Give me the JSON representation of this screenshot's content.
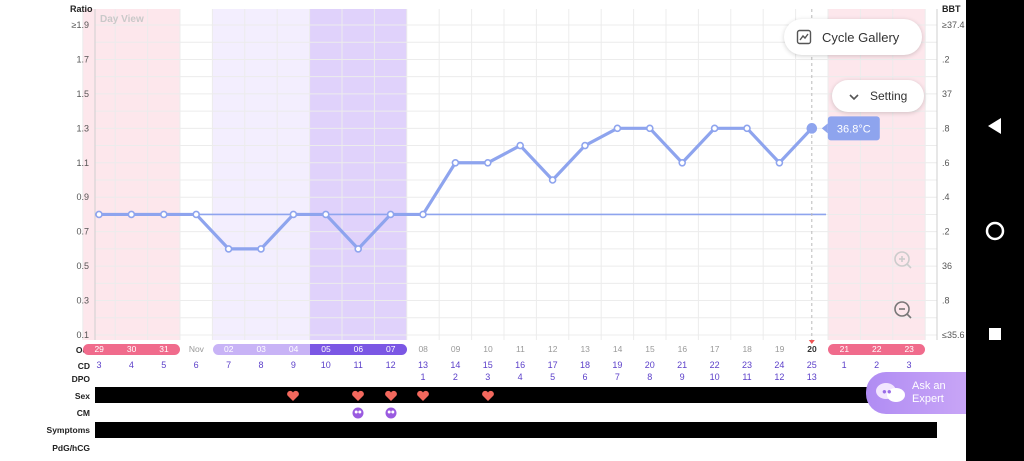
{
  "colors": {
    "line": "#8ea4ee",
    "coverline": "#8ea4ee",
    "period": "#f06b8c",
    "fertile": "#c8b3f6",
    "ovulation": "#7b57e4",
    "text_purple": "#5b3fc9"
  },
  "chart": {
    "view_label": "Day View",
    "left_axis_title": "Ratio",
    "right_axis_title": "BBT",
    "left_ticks": [
      "≥1.9",
      "1.7",
      "1.5",
      "1.3",
      "1.1",
      "0.9",
      "0.7",
      "0.5",
      "0.3",
      "0.1"
    ],
    "right_ticks": [
      "≥37.4",
      ".2",
      "37",
      ".8",
      ".6",
      ".4",
      ".2",
      "36",
      ".8",
      "≤35.6"
    ],
    "tooltip": "36.8°C",
    "coverline_value": 0.8
  },
  "chart_data": {
    "type": "line",
    "x": [
      "29",
      "30",
      "31",
      "01",
      "02",
      "03",
      "04",
      "05",
      "06",
      "07",
      "08",
      "09",
      "10",
      "11",
      "12",
      "13",
      "14",
      "15",
      "16",
      "17",
      "18",
      "19",
      "20"
    ],
    "series": [
      {
        "values": [
          0.8,
          0.8,
          0.8,
          0.8,
          0.6,
          0.6,
          0.8,
          0.8,
          0.6,
          0.8,
          0.8,
          1.1,
          1.1,
          1.2,
          1.0,
          1.2,
          1.3,
          1.3,
          1.1,
          1.3,
          1.3,
          1.1,
          1.3
        ]
      }
    ],
    "ylabel": "Ratio",
    "ylim": [
      0.1,
      1.9
    ]
  },
  "buttons": {
    "cycle_gallery": "Cycle Gallery",
    "setting": "Setting",
    "ask_expert": "Ask an Expert"
  },
  "rows": {
    "month_oct": "Oct",
    "month_nov": "Nov",
    "cd": "CD",
    "dpo": "DPO",
    "sex": "Sex",
    "cm": "CM",
    "symptoms": "Symptoms",
    "pdg": "PdG/hCG"
  },
  "dates": [
    {
      "d": "29",
      "cd": "3",
      "dpo": "",
      "kind": "period"
    },
    {
      "d": "30",
      "cd": "4",
      "dpo": "",
      "kind": "period"
    },
    {
      "d": "31",
      "cd": "5",
      "dpo": "",
      "kind": "period"
    },
    {
      "d": "Nov",
      "cd": "6",
      "dpo": "",
      "kind": "none"
    },
    {
      "d": "02",
      "cd": "7",
      "dpo": "",
      "kind": "fertile"
    },
    {
      "d": "03",
      "cd": "8",
      "dpo": "",
      "kind": "fertile"
    },
    {
      "d": "04",
      "cd": "9",
      "dpo": "",
      "kind": "fertile"
    },
    {
      "d": "05",
      "cd": "10",
      "dpo": "",
      "kind": "ovulation"
    },
    {
      "d": "06",
      "cd": "11",
      "dpo": "",
      "kind": "ovulation"
    },
    {
      "d": "07",
      "cd": "12",
      "dpo": "",
      "kind": "ovulation"
    },
    {
      "d": "08",
      "cd": "13",
      "dpo": "1",
      "kind": "none"
    },
    {
      "d": "09",
      "cd": "14",
      "dpo": "2",
      "kind": "none"
    },
    {
      "d": "10",
      "cd": "15",
      "dpo": "3",
      "kind": "none"
    },
    {
      "d": "11",
      "cd": "16",
      "dpo": "4",
      "kind": "none"
    },
    {
      "d": "12",
      "cd": "17",
      "dpo": "5",
      "kind": "none"
    },
    {
      "d": "13",
      "cd": "18",
      "dpo": "6",
      "kind": "none"
    },
    {
      "d": "14",
      "cd": "19",
      "dpo": "7",
      "kind": "none"
    },
    {
      "d": "15",
      "cd": "20",
      "dpo": "8",
      "kind": "none"
    },
    {
      "d": "16",
      "cd": "21",
      "dpo": "9",
      "kind": "none"
    },
    {
      "d": "17",
      "cd": "22",
      "dpo": "10",
      "kind": "none"
    },
    {
      "d": "18",
      "cd": "23",
      "dpo": "11",
      "kind": "none"
    },
    {
      "d": "19",
      "cd": "24",
      "dpo": "12",
      "kind": "none"
    },
    {
      "d": "20",
      "cd": "25",
      "dpo": "13",
      "kind": "today"
    },
    {
      "d": "21",
      "cd": "1",
      "dpo": "",
      "kind": "period"
    },
    {
      "d": "22",
      "cd": "2",
      "dpo": "",
      "kind": "period"
    },
    {
      "d": "23",
      "cd": "3",
      "dpo": "",
      "kind": "period"
    }
  ],
  "sex_days": [
    6,
    8,
    9,
    10,
    12
  ],
  "cm_days": [
    8,
    9
  ],
  "icons": {
    "gallery": "chart-trend-icon",
    "setting": "chevron-down-icon",
    "zoom_in": "zoom-in-icon",
    "zoom_out": "zoom-out-icon",
    "expert": "chat-bubbles-icon",
    "back": "back-triangle-icon",
    "home": "home-circle-icon",
    "recents": "recents-square-icon"
  }
}
